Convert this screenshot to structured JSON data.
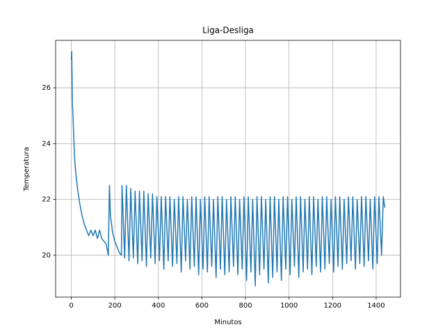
{
  "chart_data": {
    "type": "line",
    "title": "Liga-Desliga",
    "x_label": "Minutos",
    "y_label": "Temperatura",
    "color": "#1f77b4",
    "grid": true,
    "xlim": [
      -72,
      1512
    ],
    "ylim": [
      18.5,
      27.7
    ],
    "xticks": [
      0,
      200,
      400,
      600,
      800,
      1000,
      1200,
      1400
    ],
    "yticks": [
      20,
      22,
      24,
      26
    ],
    "x": [
      0,
      2,
      5,
      10,
      15,
      20,
      30,
      40,
      50,
      60,
      70,
      80,
      90,
      100,
      110,
      120,
      130,
      140,
      150,
      160,
      170,
      175,
      180,
      190,
      200,
      210,
      220,
      230,
      233,
      245,
      253,
      265,
      273,
      285,
      293,
      305,
      313,
      325,
      333,
      345,
      353,
      365,
      373,
      385,
      393,
      405,
      413,
      425,
      433,
      445,
      453,
      465,
      473,
      485,
      493,
      505,
      513,
      525,
      533,
      545,
      553,
      565,
      573,
      585,
      593,
      605,
      613,
      625,
      633,
      645,
      653,
      665,
      673,
      685,
      693,
      705,
      713,
      725,
      733,
      745,
      753,
      765,
      773,
      785,
      793,
      805,
      813,
      825,
      833,
      845,
      853,
      865,
      873,
      885,
      893,
      905,
      913,
      925,
      933,
      945,
      953,
      965,
      973,
      985,
      993,
      1005,
      1013,
      1025,
      1033,
      1045,
      1053,
      1065,
      1073,
      1085,
      1093,
      1105,
      1113,
      1125,
      1133,
      1145,
      1153,
      1165,
      1173,
      1185,
      1193,
      1205,
      1213,
      1225,
      1233,
      1245,
      1253,
      1265,
      1273,
      1285,
      1293,
      1305,
      1313,
      1325,
      1333,
      1345,
      1353,
      1365,
      1373,
      1385,
      1393,
      1405,
      1413,
      1425,
      1433,
      1440
    ],
    "values": [
      27.0,
      27.3,
      25.5,
      24.5,
      23.5,
      23.0,
      22.3,
      21.8,
      21.4,
      21.1,
      20.9,
      20.7,
      20.9,
      20.7,
      20.9,
      20.6,
      20.9,
      20.6,
      20.5,
      20.4,
      20.0,
      22.5,
      21.4,
      20.8,
      20.5,
      20.3,
      20.1,
      20.0,
      22.5,
      19.9,
      22.5,
      19.8,
      22.4,
      19.9,
      22.3,
      19.7,
      22.3,
      19.8,
      22.3,
      19.6,
      22.2,
      19.9,
      22.2,
      19.7,
      22.1,
      19.8,
      22.1,
      19.5,
      22.1,
      19.8,
      22.1,
      19.6,
      22.0,
      19.7,
      22.1,
      19.4,
      22.1,
      19.8,
      22.0,
      19.5,
      22.1,
      19.6,
      22.1,
      19.3,
      22.0,
      19.5,
      22.1,
      19.4,
      22.1,
      19.6,
      22.0,
      19.2,
      22.1,
      19.5,
      22.1,
      19.3,
      22.0,
      19.4,
      22.1,
      19.6,
      22.1,
      19.3,
      22.0,
      19.5,
      22.1,
      19.1,
      22.1,
      19.4,
      22.0,
      18.9,
      22.1,
      19.3,
      22.1,
      19.5,
      22.0,
      19.0,
      22.1,
      19.2,
      22.1,
      19.4,
      22.0,
      19.1,
      22.1,
      19.5,
      22.1,
      19.3,
      22.0,
      19.6,
      22.1,
      19.2,
      22.1,
      19.4,
      22.0,
      19.5,
      22.1,
      19.3,
      22.1,
      19.6,
      22.0,
      19.4,
      22.1,
      19.5,
      22.1,
      19.7,
      22.0,
      19.4,
      22.1,
      19.6,
      22.1,
      19.5,
      22.0,
      19.7,
      22.1,
      19.8,
      22.1,
      19.5,
      22.0,
      19.7,
      22.1,
      19.6,
      22.1,
      19.8,
      22.0,
      19.5,
      22.1,
      19.7,
      22.1,
      20.0,
      22.1,
      21.7
    ]
  }
}
